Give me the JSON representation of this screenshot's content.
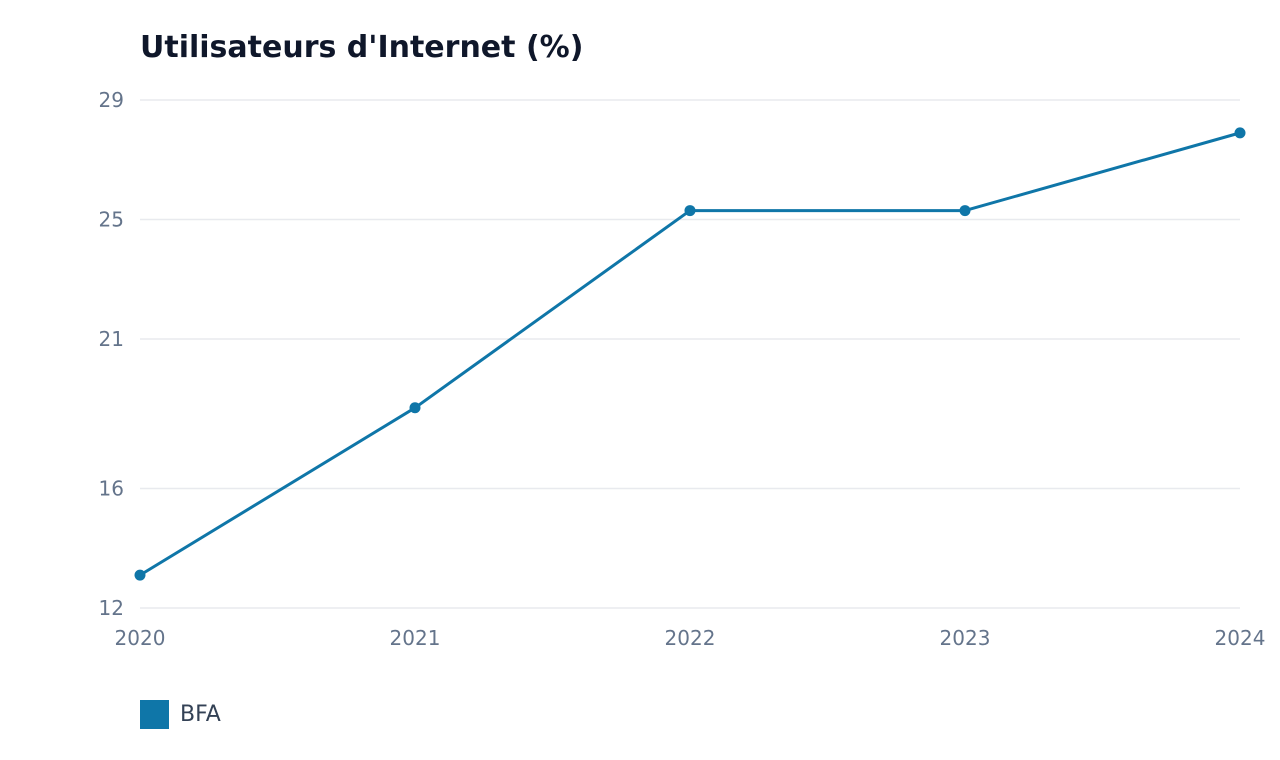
{
  "chart_data": {
    "type": "line",
    "title": "Utilisateurs d'Internet (%)",
    "xlabel": "",
    "ylabel": "",
    "x": [
      "2020",
      "2021",
      "2022",
      "2023",
      "2024"
    ],
    "y_ticks": [
      12,
      16,
      21,
      25,
      29
    ],
    "ylim": [
      12,
      29
    ],
    "grid": true,
    "legend_position": "bottom-left",
    "series": [
      {
        "name": "BFA",
        "color": "#0f76a8",
        "values": [
          13.1,
          18.7,
          25.3,
          25.3,
          27.9
        ]
      }
    ]
  }
}
